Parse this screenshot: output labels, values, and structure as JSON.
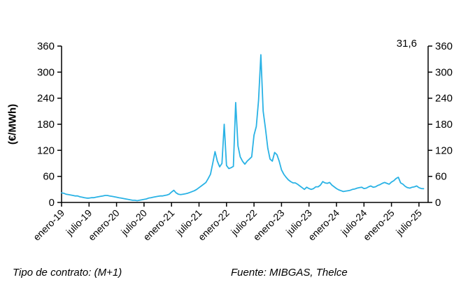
{
  "chart": {
    "y_axis_label": "(€/MWh)",
    "annotation": "31,6",
    "footer_left": "Tipo de contrato: (M+1)",
    "footer_right": "Fuente: MIBGAS, Thelce",
    "line_color": "#29b2e5",
    "axis_color": "#000000"
  },
  "chart_data": {
    "type": "line",
    "title": "",
    "xlabel": "",
    "ylabel": "(€/MWh)",
    "ylim": [
      0,
      360
    ],
    "y_ticks": [
      0,
      60,
      120,
      180,
      240,
      300,
      360
    ],
    "y_axis_sides": [
      "left",
      "right"
    ],
    "grid": false,
    "legend": false,
    "x_domain_months": [
      0,
      80
    ],
    "x_tick_labels": [
      "enero-19",
      "julio-19",
      "enero-20",
      "julio-20",
      "enero-21",
      "julio-21",
      "enero-22",
      "julio-22",
      "enero-23",
      "julio-23",
      "enero-24",
      "julio-24",
      "enero-25",
      "julio-25"
    ],
    "x_tick_month_positions": [
      0,
      6,
      12,
      18,
      24,
      30,
      36,
      42,
      48,
      54,
      60,
      66,
      72,
      78
    ],
    "annotations": [
      {
        "text": "31,6",
        "position": "top-right",
        "meaning": "last value of series"
      }
    ],
    "series": [
      {
        "name": "MIBGAS M+1",
        "color": "#29b2e5",
        "x_start_month": 0,
        "x_step_months": 0.5,
        "values": [
          22,
          21,
          19,
          18,
          17,
          16,
          15,
          15,
          13,
          12,
          11,
          10,
          10,
          11,
          11,
          12,
          13,
          14,
          15,
          16,
          16,
          15,
          14,
          13,
          12,
          11,
          10,
          9,
          8,
          7,
          6,
          5,
          5,
          4,
          5,
          6,
          7,
          8,
          10,
          11,
          12,
          13,
          14,
          15,
          15,
          16,
          17,
          19,
          24,
          28,
          22,
          19,
          18,
          19,
          20,
          21,
          23,
          25,
          27,
          30,
          34,
          38,
          42,
          46,
          55,
          65,
          90,
          117,
          95,
          82,
          90,
          180,
          85,
          78,
          80,
          83,
          230,
          130,
          105,
          95,
          88,
          95,
          100,
          105,
          155,
          175,
          235,
          340,
          210,
          170,
          125,
          100,
          95,
          115,
          110,
          95,
          75,
          65,
          58,
          52,
          48,
          45,
          45,
          42,
          38,
          34,
          30,
          35,
          32,
          30,
          32,
          36,
          36,
          40,
          48,
          45,
          44,
          46,
          40,
          36,
          32,
          29,
          27,
          25,
          26,
          27,
          28,
          30,
          31,
          33,
          34,
          35,
          32,
          33,
          36,
          38,
          35,
          36,
          39,
          41,
          44,
          46,
          44,
          42,
          47,
          50,
          55,
          58,
          45,
          42,
          37,
          34,
          33,
          35,
          36,
          38,
          34,
          32,
          31.6
        ]
      }
    ],
    "footnotes": [
      "Tipo de contrato: (M+1)",
      "Fuente: MIBGAS, Thelce"
    ]
  }
}
